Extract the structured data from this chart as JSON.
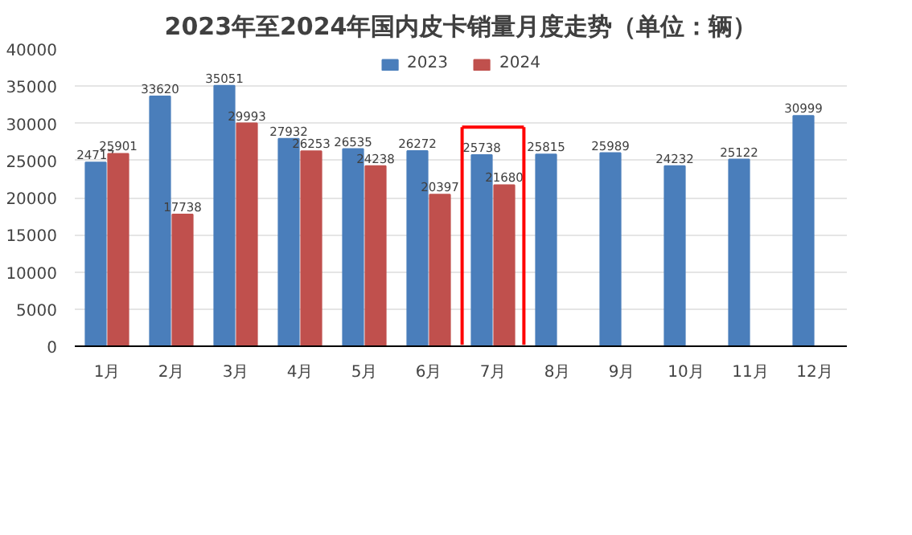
{
  "chart_data": {
    "type": "bar",
    "title": "2023年至2024年国内皮卡销量月度走势（单位：辆）",
    "categories": [
      "1月",
      "2月",
      "3月",
      "4月",
      "5月",
      "6月",
      "7月",
      "8月",
      "9月",
      "10月",
      "11月",
      "12月"
    ],
    "series": [
      {
        "name": "2023",
        "color": "#4a7ebb",
        "values": [
          24717,
          33620,
          35051,
          27932,
          26535,
          26272,
          25738,
          25815,
          25989,
          24232,
          25122,
          30999
        ]
      },
      {
        "name": "2024",
        "color": "#c0504d",
        "values": [
          25901,
          17738,
          29993,
          26253,
          24238,
          20397,
          21680,
          null,
          null,
          null,
          null,
          null
        ]
      }
    ],
    "ylim": [
      0,
      40000
    ],
    "yticks": [
      0,
      5000,
      10000,
      15000,
      20000,
      25000,
      30000,
      35000,
      40000
    ],
    "grid": "y",
    "legend": "top",
    "data_labels": true
  }
}
